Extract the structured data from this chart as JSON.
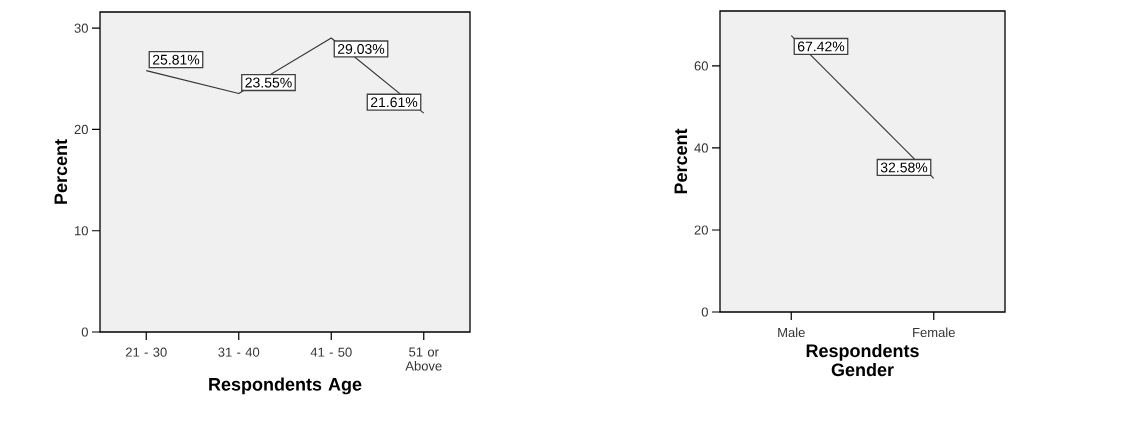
{
  "chart_data": [
    {
      "type": "line",
      "xlabel": "Respondents Age",
      "ylabel": "Percent",
      "categories": [
        "21 - 30",
        "31 - 40",
        "41 - 50",
        "51 or Above"
      ],
      "values": [
        25.81,
        23.55,
        29.03,
        21.61
      ],
      "value_labels": [
        "25.81%",
        "23.55%",
        "29.03%",
        "21.61%"
      ],
      "color": "#333333",
      "ylim": [
        0,
        31.6
      ],
      "yticks": [
        0,
        10,
        20,
        30
      ],
      "grid": false,
      "marker": "none",
      "line_style": "solid"
    },
    {
      "type": "line",
      "xlabel": "Respondents Gender",
      "ylabel": "Percent",
      "categories": [
        "Male",
        "Female"
      ],
      "values": [
        67.42,
        32.58
      ],
      "value_labels": [
        "67.42%",
        "32.58%"
      ],
      "color": "#333333",
      "ylim": [
        0,
        73.4
      ],
      "yticks": [
        0,
        20,
        40,
        60
      ],
      "grid": false,
      "marker": "none",
      "line_style": "solid"
    }
  ]
}
